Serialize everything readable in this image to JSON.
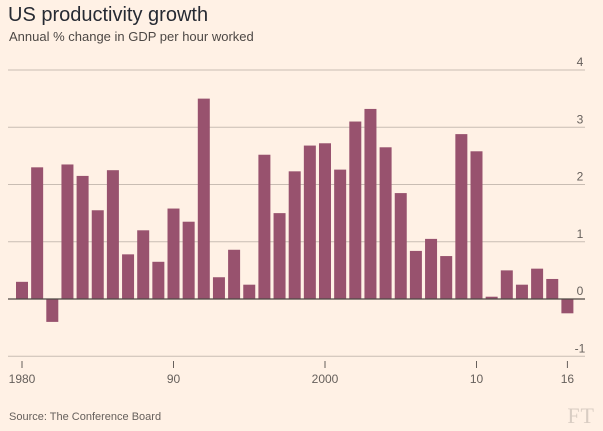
{
  "header": {
    "title": "US productivity growth",
    "subtitle": "Annual % change in GDP per hour worked"
  },
  "footer": {
    "source": "Source: The Conference Board",
    "logo": "FT"
  },
  "colors": {
    "bar": "#98526e",
    "grid": "#c9bdb3",
    "zero_line": "#4d4845",
    "background": "#fff1e5"
  },
  "chart_data": {
    "type": "bar",
    "title": "US productivity growth",
    "subtitle": "Annual % change in GDP per hour worked",
    "xlabel": "",
    "ylabel": "",
    "ylim": [
      -1,
      4
    ],
    "yticks": [
      4,
      3,
      2,
      1,
      0,
      -1
    ],
    "y_axis_side": "right",
    "grid": true,
    "x_tick_labels": [
      {
        "year": 1980,
        "label": "1980"
      },
      {
        "year": 1990,
        "label": "90"
      },
      {
        "year": 2000,
        "label": "2000"
      },
      {
        "year": 2010,
        "label": "10"
      },
      {
        "year": 2016,
        "label": "16"
      }
    ],
    "categories": [
      1980,
      1981,
      1982,
      1983,
      1984,
      1985,
      1986,
      1987,
      1988,
      1989,
      1990,
      1991,
      1992,
      1993,
      1994,
      1995,
      1996,
      1997,
      1998,
      1999,
      2000,
      2001,
      2002,
      2003,
      2004,
      2005,
      2006,
      2007,
      2008,
      2009,
      2010,
      2011,
      2012,
      2013,
      2014,
      2015,
      2016
    ],
    "values": [
      0.3,
      2.3,
      -0.4,
      2.35,
      2.15,
      1.55,
      2.25,
      0.78,
      1.2,
      0.65,
      1.58,
      1.35,
      3.5,
      0.38,
      0.86,
      0.25,
      2.52,
      1.5,
      2.23,
      2.68,
      2.72,
      2.26,
      3.1,
      3.32,
      2.65,
      1.85,
      0.84,
      1.05,
      0.75,
      2.88,
      2.58,
      0.04,
      0.5,
      0.25,
      0.53,
      0.35,
      -0.25
    ]
  }
}
